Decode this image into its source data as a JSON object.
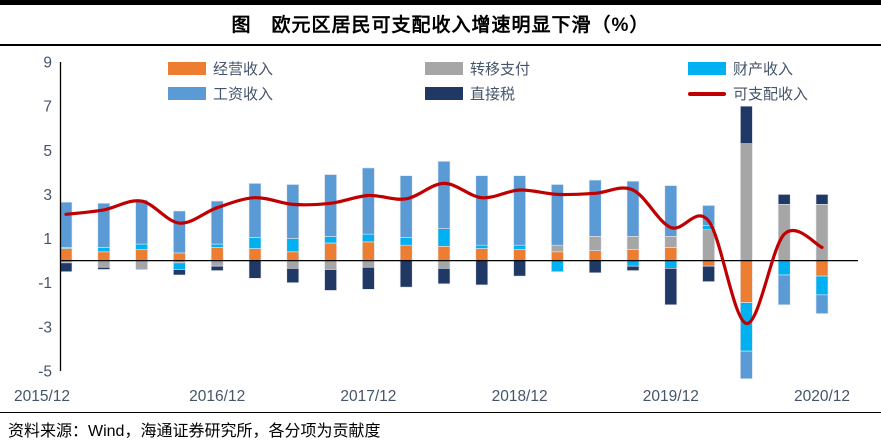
{
  "title": "图　欧元区居民可支配收入增速明显下滑（%）",
  "source": "资料来源：Wind，海通证券研究所，各分项为贡献度",
  "colors": {
    "operating_income": "#ED7D31",
    "transfer_payment": "#A6A6A6",
    "property_income": "#00B0F0",
    "wage_income": "#5B9BD5",
    "direct_tax": "#1F3864",
    "disposable_income_line": "#C00000",
    "axis_text": "#44546A",
    "axis_line": "#000000"
  },
  "legend": {
    "items": [
      {
        "label": "经营收入",
        "color": "#ED7D31",
        "type": "box"
      },
      {
        "label": "转移支付",
        "color": "#A6A6A6",
        "type": "box"
      },
      {
        "label": "财产收入",
        "color": "#00B0F0",
        "type": "box"
      },
      {
        "label": "工资收入",
        "color": "#5B9BD5",
        "type": "box"
      },
      {
        "label": "直接税",
        "color": "#1F3864",
        "type": "box"
      },
      {
        "label": "可支配收入",
        "color": "#C00000",
        "type": "line"
      }
    ]
  },
  "chart_data": {
    "type": "bar",
    "subtype": "stacked-bars-with-line",
    "title": "图　欧元区居民可支配收入增速明显下滑（%）",
    "xlabel": "",
    "ylabel": "",
    "ylim": [
      -5,
      9
    ],
    "yticks": [
      9,
      7,
      5,
      3,
      1,
      -1,
      -3,
      -5
    ],
    "grid": false,
    "legend_position": "top-inside",
    "categories": [
      "2015/12",
      "2016/03",
      "2016/06",
      "2016/09",
      "2016/12",
      "2017/03",
      "2017/06",
      "2017/09",
      "2017/12",
      "2018/03",
      "2018/06",
      "2018/09",
      "2018/12",
      "2019/03",
      "2019/06",
      "2019/09",
      "2019/12",
      "2020/03",
      "2020/06",
      "2020/09",
      "2020/12"
    ],
    "x_tick_labels": [
      "2015/12",
      "2016/12",
      "2017/12",
      "2018/12",
      "2019/12",
      "2020/12"
    ],
    "x_tick_indices": [
      0,
      4,
      8,
      12,
      16,
      20
    ],
    "series": [
      {
        "name": "经营收入",
        "color": "#ED7D31",
        "values": [
          0.55,
          0.4,
          0.5,
          0.35,
          0.6,
          0.55,
          0.4,
          0.8,
          0.85,
          0.7,
          0.65,
          0.55,
          0.5,
          0.4,
          0.45,
          0.5,
          0.6,
          -0.25,
          -1.9,
          0.0,
          -0.7
        ]
      },
      {
        "name": "转移支付",
        "color": "#A6A6A6",
        "values": [
          -0.1,
          -0.3,
          -0.35,
          -0.1,
          -0.25,
          0.0,
          -0.35,
          -0.4,
          -0.3,
          0.0,
          -0.35,
          0.0,
          0.0,
          0.3,
          0.65,
          0.6,
          0.5,
          1.4,
          5.3,
          2.55,
          2.55
        ]
      },
      {
        "name": "财产收入",
        "color": "#00B0F0",
        "values": [
          0.05,
          0.2,
          0.25,
          -0.3,
          0.15,
          0.5,
          0.6,
          0.3,
          0.35,
          0.35,
          0.8,
          0.15,
          0.2,
          -0.5,
          0.0,
          -0.25,
          -0.35,
          0.2,
          -2.2,
          -0.65,
          -0.85
        ]
      },
      {
        "name": "工资收入",
        "color": "#5B9BD5",
        "values": [
          2.05,
          2.0,
          2.0,
          1.9,
          1.95,
          2.45,
          2.45,
          2.8,
          3.0,
          2.8,
          3.05,
          3.15,
          3.15,
          2.75,
          2.55,
          2.5,
          2.3,
          0.9,
          -1.25,
          -1.35,
          -0.85
        ]
      },
      {
        "name": "直接税",
        "color": "#1F3864",
        "values": [
          -0.4,
          -0.1,
          -0.05,
          -0.25,
          -0.2,
          -0.8,
          -0.65,
          -0.95,
          -1.0,
          -1.2,
          -0.7,
          -1.1,
          -0.7,
          0.0,
          -0.55,
          -0.2,
          -1.65,
          -0.7,
          1.7,
          0.45,
          0.45
        ]
      }
    ],
    "line_series": {
      "name": "可支配收入",
      "color": "#C00000",
      "smooth": true,
      "values": [
        2.1,
        2.3,
        2.7,
        1.7,
        2.4,
        2.85,
        2.55,
        2.6,
        2.95,
        2.8,
        3.5,
        2.85,
        3.2,
        3.0,
        3.05,
        3.2,
        1.5,
        1.8,
        -2.85,
        1.2,
        0.6
      ]
    }
  }
}
